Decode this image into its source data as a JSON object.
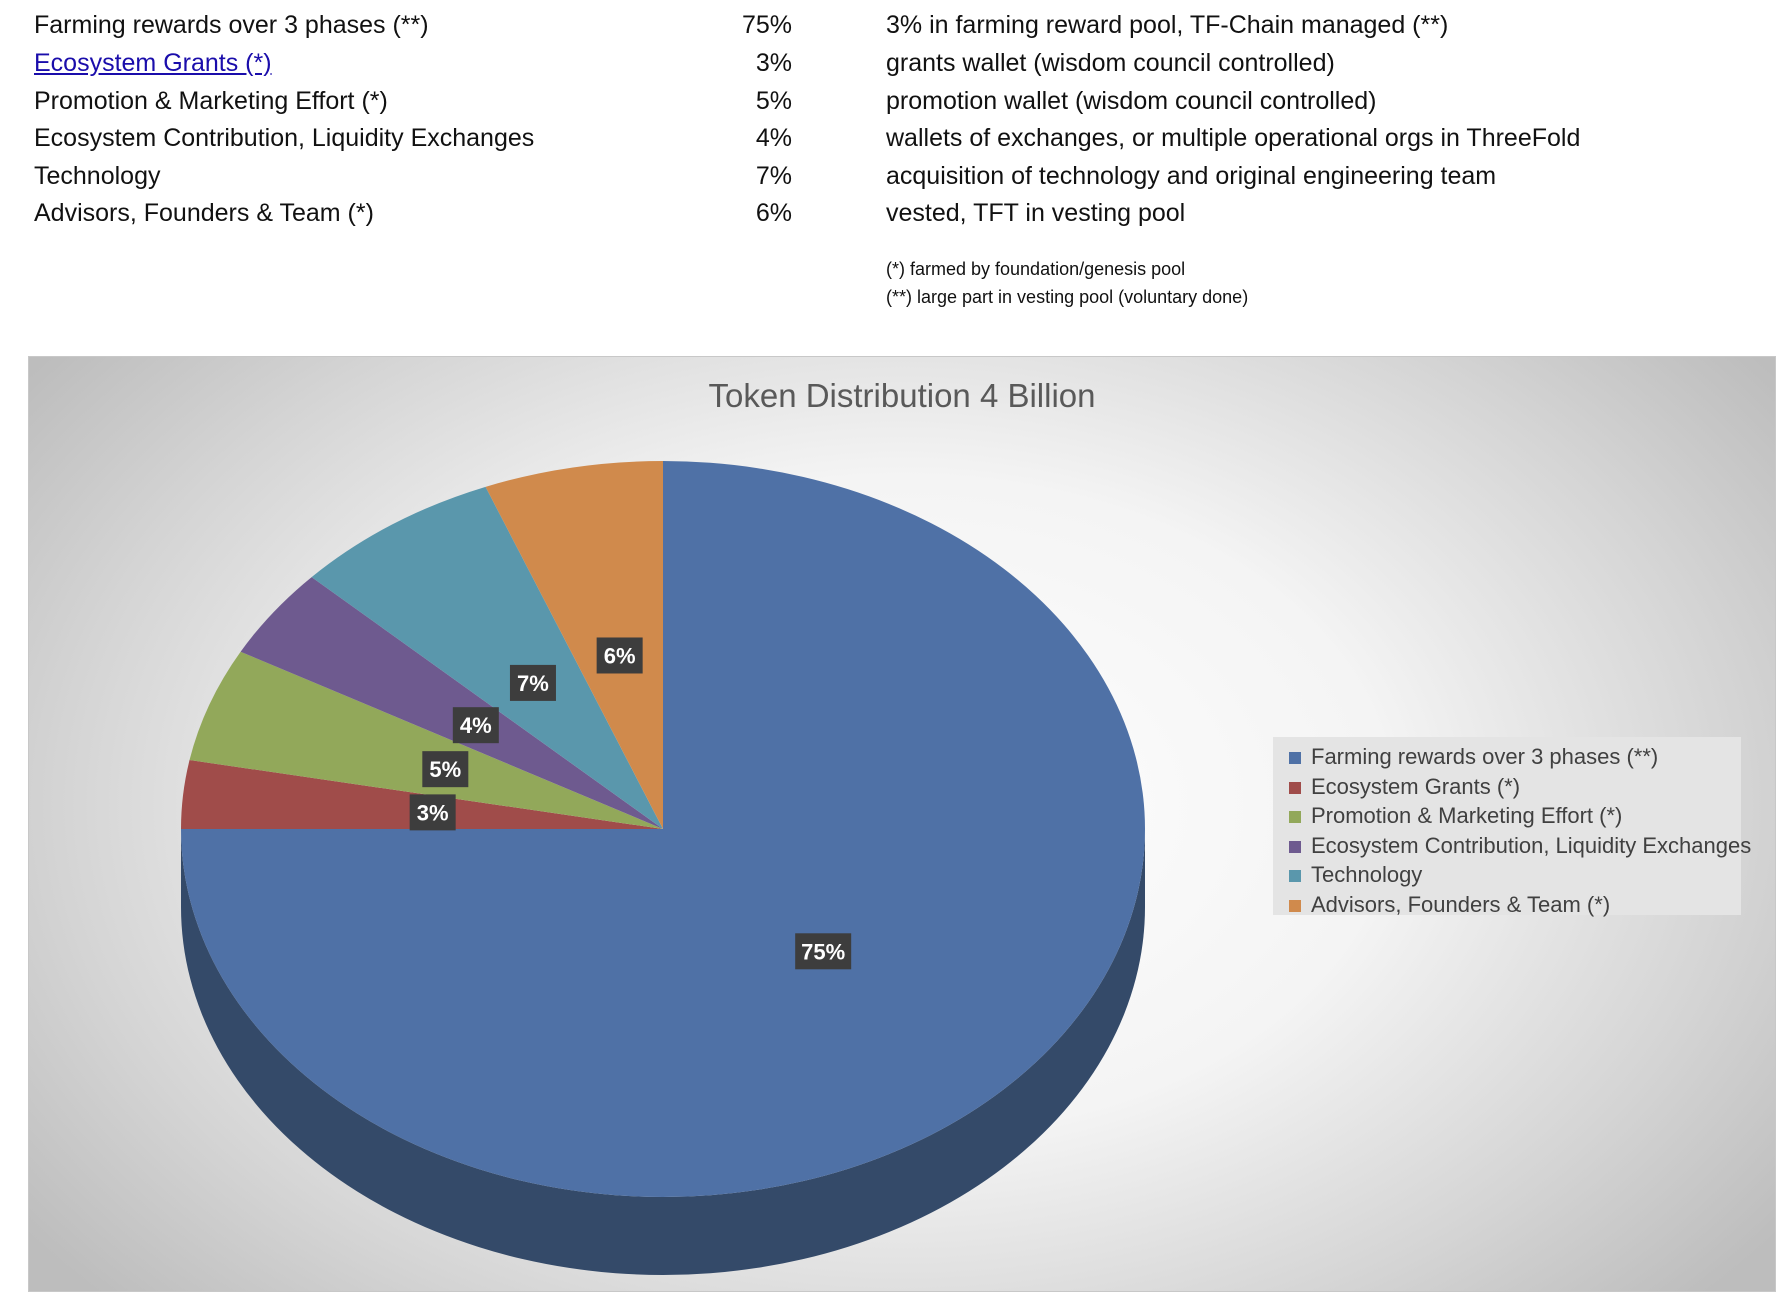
{
  "table": {
    "rows": [
      {
        "label": "Farming rewards over 3 phases (**)",
        "pct": "75%",
        "desc": "3% in farming reward pool, TF-Chain managed (**)",
        "link": false
      },
      {
        "label": "Ecosystem Grants  (*)",
        "pct": "3%",
        "desc": "grants wallet (wisdom council controlled)",
        "link": true
      },
      {
        "label": "Promotion & Marketing Effort  (*)",
        "pct": "5%",
        "desc": "promotion wallet (wisdom council controlled)",
        "link": false
      },
      {
        "label": "Ecosystem Contribution, Liquidity Exchanges",
        "pct": "4%",
        "desc": "wallets of exchanges, or multiple operational orgs in ThreeFold",
        "link": false
      },
      {
        "label": "Technology",
        "pct": "7%",
        "desc": "acquisition of technology and original engineering team",
        "link": false
      },
      {
        "label": "Advisors, Founders & Team (*)",
        "pct": "6%",
        "desc": "vested, TFT in vesting pool",
        "link": false
      }
    ],
    "footnotes": [
      "(*) farmed by foundation/genesis pool",
      "(**) large part in vesting pool (voluntary done)"
    ]
  },
  "chart_data": {
    "type": "pie",
    "title": "Token Distribution 4 Billion",
    "legend_position": "right",
    "three_d": true,
    "categories": [
      "Farming rewards over 3 phases (**)",
      "Ecosystem Grants  (*)",
      "Promotion & Marketing Effort  (*)",
      "Ecosystem Contribution, Liquidity Exchanges",
      "Technology",
      "Advisors, Founders & Team (*)"
    ],
    "values": [
      75,
      3,
      5,
      4,
      7,
      6
    ],
    "data_labels": [
      "75%",
      "3%",
      "5%",
      "4%",
      "7%",
      "6%"
    ],
    "colors": [
      "#4f71a6",
      "#a04c4a",
      "#92a85a",
      "#6e5a8f",
      "#5a97ac",
      "#d08a4c"
    ],
    "side_colors": [
      "#344a69",
      "#6b3231",
      "#5f6e3a",
      "#483b5e",
      "#3b6371",
      "#8a5b32"
    ]
  }
}
